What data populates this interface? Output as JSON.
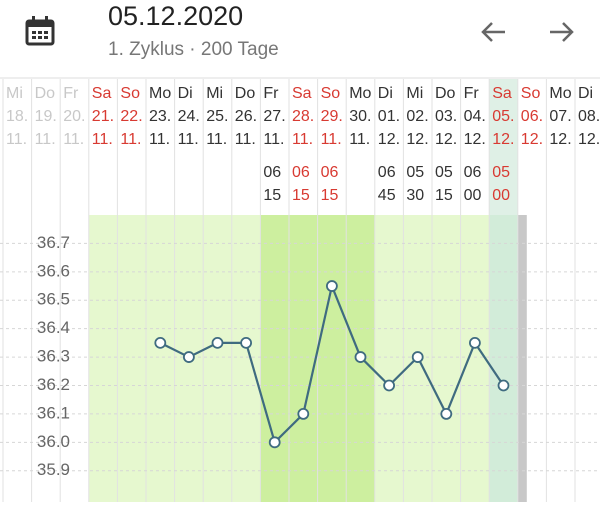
{
  "header": {
    "title": "05.12.2020",
    "subtitle": "1. Zyklus · 200 Tage"
  },
  "columns": [
    {
      "weekday": "Mi",
      "day": "18.",
      "month": "11.",
      "faded": true
    },
    {
      "weekday": "Do",
      "day": "19.",
      "month": "11.",
      "faded": true
    },
    {
      "weekday": "Fr",
      "day": "20.",
      "month": "11.",
      "faded": true
    },
    {
      "weekday": "Sa",
      "day": "21.",
      "month": "11.",
      "weekend": true
    },
    {
      "weekday": "So",
      "day": "22.",
      "month": "11.",
      "weekend": true
    },
    {
      "weekday": "Mo",
      "day": "23.",
      "month": "11."
    },
    {
      "weekday": "Di",
      "day": "24.",
      "month": "11."
    },
    {
      "weekday": "Mi",
      "day": "25.",
      "month": "11."
    },
    {
      "weekday": "Do",
      "day": "26.",
      "month": "11."
    },
    {
      "weekday": "Fr",
      "day": "27.",
      "month": "11.",
      "time": [
        "06",
        "15"
      ]
    },
    {
      "weekday": "Sa",
      "day": "28.",
      "month": "11.",
      "weekend": true,
      "time": [
        "06",
        "15"
      ]
    },
    {
      "weekday": "So",
      "day": "29.",
      "month": "11.",
      "weekend": true,
      "time": [
        "06",
        "15"
      ]
    },
    {
      "weekday": "Mo",
      "day": "30.",
      "month": "11."
    },
    {
      "weekday": "Di",
      "day": "01.",
      "month": "12.",
      "time": [
        "06",
        "45"
      ]
    },
    {
      "weekday": "Mi",
      "day": "02.",
      "month": "12.",
      "time": [
        "05",
        "30"
      ]
    },
    {
      "weekday": "Do",
      "day": "03.",
      "month": "12.",
      "time": [
        "05",
        "15"
      ]
    },
    {
      "weekday": "Fr",
      "day": "04.",
      "month": "12.",
      "time": [
        "06",
        "00"
      ]
    },
    {
      "weekday": "Sa",
      "day": "05.",
      "month": "12.",
      "weekend": true,
      "time": [
        "05",
        "00"
      ]
    },
    {
      "weekday": "So",
      "day": "06.",
      "month": "12.",
      "weekend": true
    },
    {
      "weekday": "Mo",
      "day": "07.",
      "month": "12."
    },
    {
      "weekday": "Di",
      "day": "08.",
      "month": "12."
    }
  ],
  "chart_data": {
    "type": "line",
    "color": "#3f6b80",
    "values": [
      null,
      null,
      null,
      null,
      null,
      36.35,
      36.3,
      36.35,
      36.35,
      36.0,
      36.1,
      36.55,
      36.3,
      36.2,
      36.3,
      36.1,
      36.35,
      36.2,
      null,
      null,
      null
    ],
    "ylim": [
      35.79,
      36.8
    ],
    "yticks": [
      35.9,
      {
        "value": 36,
        "label": "36.0"
      },
      36.1,
      36.2,
      36.3,
      36.4,
      36.5,
      36.6,
      36.7
    ],
    "grid": true
  }
}
